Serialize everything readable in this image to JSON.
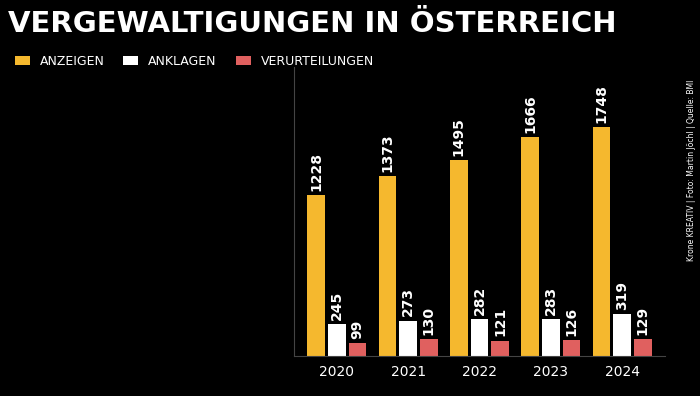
{
  "chart_data": {
    "type": "bar",
    "title": "VERGEWALTIGUNGEN IN ÖSTERREICH",
    "annotations": [
      "Krone KREATIV | Foto: Martin Jöchl | Quelle: BMI"
    ],
    "categories": [
      "2020",
      "2021",
      "2022",
      "2023",
      "2024"
    ],
    "series": [
      {
        "name": "ANZEIGEN",
        "color": "#f5b82e",
        "values": [
          1228,
          1373,
          1495,
          1666,
          1748
        ]
      },
      {
        "name": "ANKLAGEN",
        "color": "#ffffff",
        "values": [
          245,
          273,
          282,
          283,
          319
        ]
      },
      {
        "name": "VERURTEILUNGEN",
        "color": "#e0605f",
        "values": [
          99,
          130,
          121,
          126,
          129
        ]
      }
    ],
    "ylim": [
      0,
      2200
    ],
    "legend": "upper left",
    "data_labels": true,
    "tick_labels": "x",
    "grid": false
  }
}
